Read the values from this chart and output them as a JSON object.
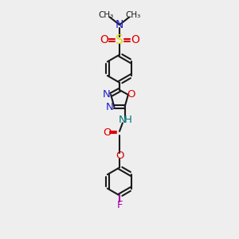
{
  "background_color": "#eeeeee",
  "bond_color": "#1a1a1a",
  "N_color": "#2222cc",
  "O_color": "#dd0000",
  "S_color": "#dddd00",
  "F_color": "#aa00aa",
  "NH_color": "#007777",
  "figsize": [
    3.0,
    3.0
  ],
  "dpi": 100,
  "xlim": [
    0,
    10
  ],
  "ylim": [
    0,
    17
  ]
}
